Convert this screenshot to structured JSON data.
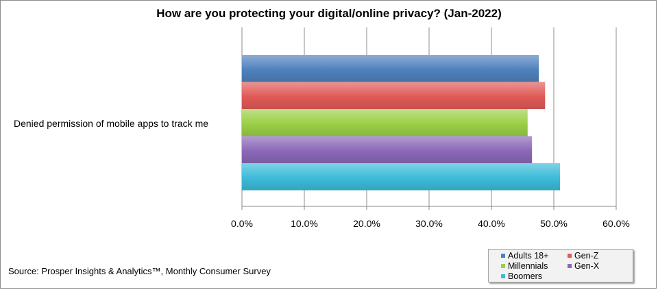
{
  "chart_data": {
    "type": "bar",
    "orientation": "horizontal",
    "title": "How are you protecting your digital/online  privacy? (Jan-2022)",
    "categories": [
      "Denied permission of mobile apps to track me"
    ],
    "series": [
      {
        "name": "Adults 18+",
        "values": [
          47.6
        ],
        "color": "#4f81bd"
      },
      {
        "name": "Gen-Z",
        "values": [
          48.6
        ],
        "color": "#e05a57"
      },
      {
        "name": "Millennials",
        "values": [
          45.8
        ],
        "color": "#9bcf46"
      },
      {
        "name": "Gen-X",
        "values": [
          46.5
        ],
        "color": "#8a68b8"
      },
      {
        "name": "Boomers",
        "values": [
          51.0
        ],
        "color": "#3cbbd8"
      }
    ],
    "xlim": [
      0,
      60
    ],
    "x_ticks": [
      "0.0%",
      "10.0%",
      "20.0%",
      "30.0%",
      "40.0%",
      "50.0%",
      "60.0%"
    ],
    "grid": true,
    "legend_position": "bottom-right",
    "source": "Source: Prosper Insights & Analytics™, Monthly Consumer Survey"
  }
}
